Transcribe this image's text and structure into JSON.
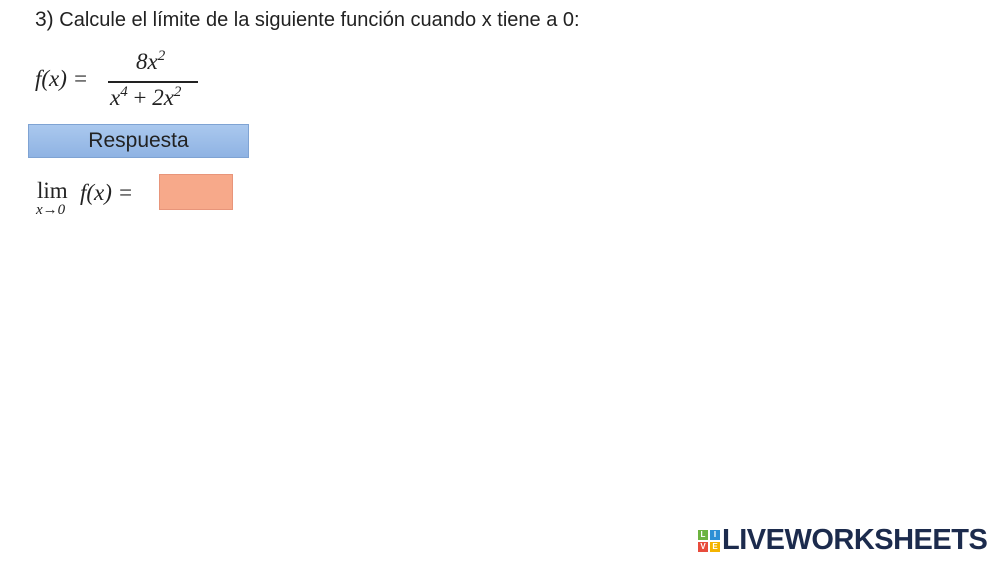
{
  "question": {
    "number": "3)",
    "text": "Calcule el límite de la siguiente función cuando x tiene a 0:"
  },
  "formula": {
    "lhs": "f(x) =",
    "numerator": {
      "base": "8x",
      "exponent": "2"
    },
    "denominator": {
      "term1_base": "x",
      "term1_exponent": "4",
      "operator": "+",
      "term2_base": "2x",
      "term2_exponent": "2"
    }
  },
  "button": {
    "label": "Respuesta"
  },
  "limit": {
    "operator": "lim",
    "subscript": "x→0",
    "expression": "f(x) ="
  },
  "logo": {
    "text": "LIVEWORKSHEETS",
    "icon_letters": [
      "L",
      "I",
      "V",
      "E"
    ]
  }
}
